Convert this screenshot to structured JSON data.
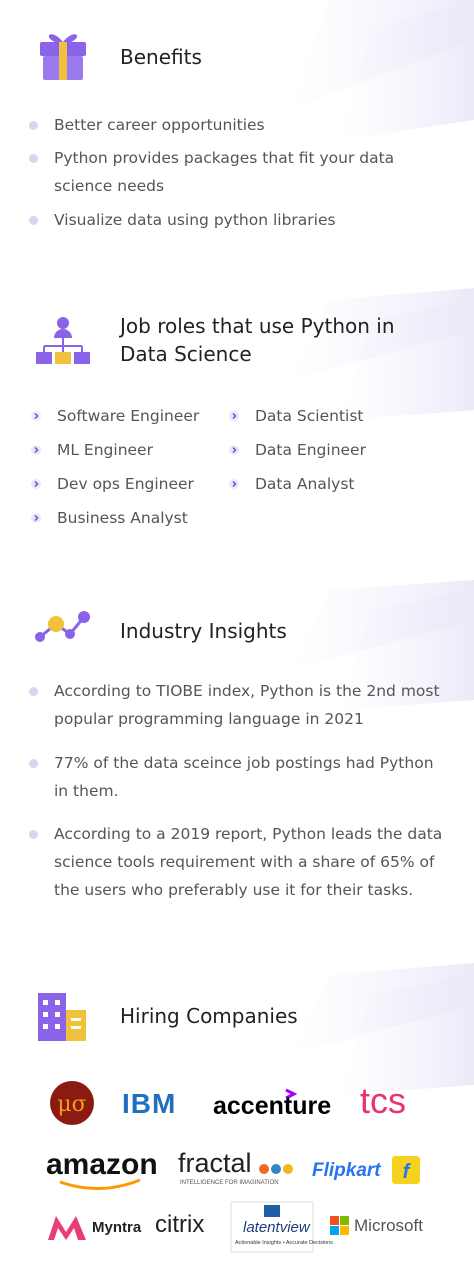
{
  "sections": [
    {
      "title": "Benefits",
      "items": [
        "Better career opportunities",
        "Python provides packages that fit your data science needs",
        "Visualize data using python libraries"
      ]
    },
    {
      "title": "Job roles that use Python in Data Science",
      "columns": [
        [
          "Software Engineer",
          "ML Engineer",
          "Dev ops Engineer",
          "Business Analyst"
        ],
        [
          "Data Scientist",
          "Data Engineer",
          "Data Analyst"
        ]
      ]
    },
    {
      "title": "Industry Insights",
      "items": [
        "According to TIOBE index, Python is the 2nd most popular programming language in 2021",
        "77% of the data sceince job postings had Python in them.",
        "According to a 2019 report, Python leads the data science tools requirement with a share of 65% of the users who preferably use it for their tasks."
      ]
    },
    {
      "title": "Hiring Companies",
      "logos": {
        "ibm": "IBM",
        "accenture": "accenture",
        "tcs": "tcs",
        "amazon": "amazon",
        "fractal": "fractal",
        "fractal_tagline": "INTELLIGENCE FOR IMAGINATION",
        "flipkart": "Flipkart",
        "myntra": "Myntra",
        "citrix": "citrix",
        "latentview": "latentview",
        "latentview_tagline": "Actionable Insights • Accurate Decisions",
        "microsoft": "Microsoft"
      }
    }
  ]
}
